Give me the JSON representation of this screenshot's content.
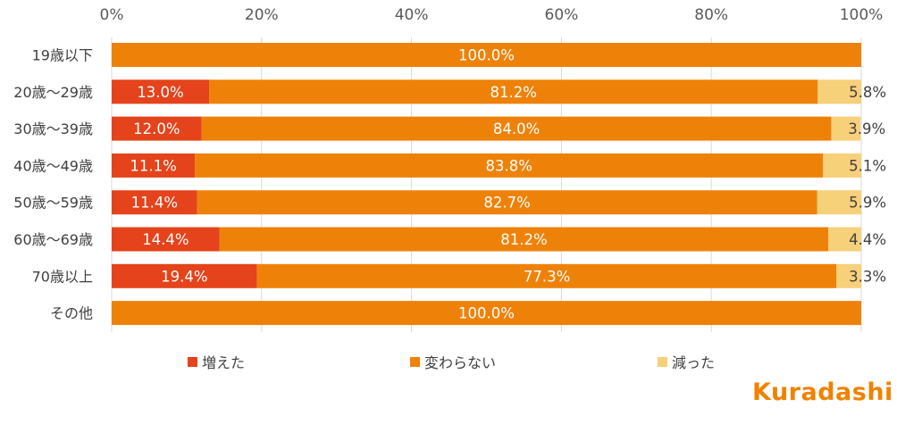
{
  "chart_data": {
    "type": "bar",
    "orientation": "horizontal-stacked-100",
    "categories": [
      "19歳以下",
      "20歳～29歳",
      "30歳～39歳",
      "40歳～49歳",
      "50歳～59歳",
      "60歳～69歳",
      "70歳以上",
      "その他"
    ],
    "series": [
      {
        "name": "増えた",
        "color": "#e4431b",
        "values": [
          0,
          13.0,
          12.0,
          11.1,
          11.4,
          14.4,
          19.4,
          0
        ]
      },
      {
        "name": "変わらない",
        "color": "#ee8209",
        "values": [
          100.0,
          81.2,
          84.0,
          83.8,
          82.7,
          81.2,
          77.3,
          100.0
        ]
      },
      {
        "name": "減った",
        "color": "#f7d07a",
        "values": [
          0,
          5.8,
          3.9,
          5.1,
          5.9,
          4.4,
          3.3,
          0
        ]
      }
    ],
    "xticks": [
      "0%",
      "20%",
      "40%",
      "60%",
      "80%",
      "100%"
    ],
    "xlim": [
      0,
      100
    ],
    "gridlines": true,
    "legend_position": "bottom"
  },
  "legend": {
    "increased": "増えた",
    "unchanged": "変わらない",
    "decreased": "減った"
  },
  "brand": {
    "logo_text": "Kuradashi",
    "color": "#f08200"
  }
}
